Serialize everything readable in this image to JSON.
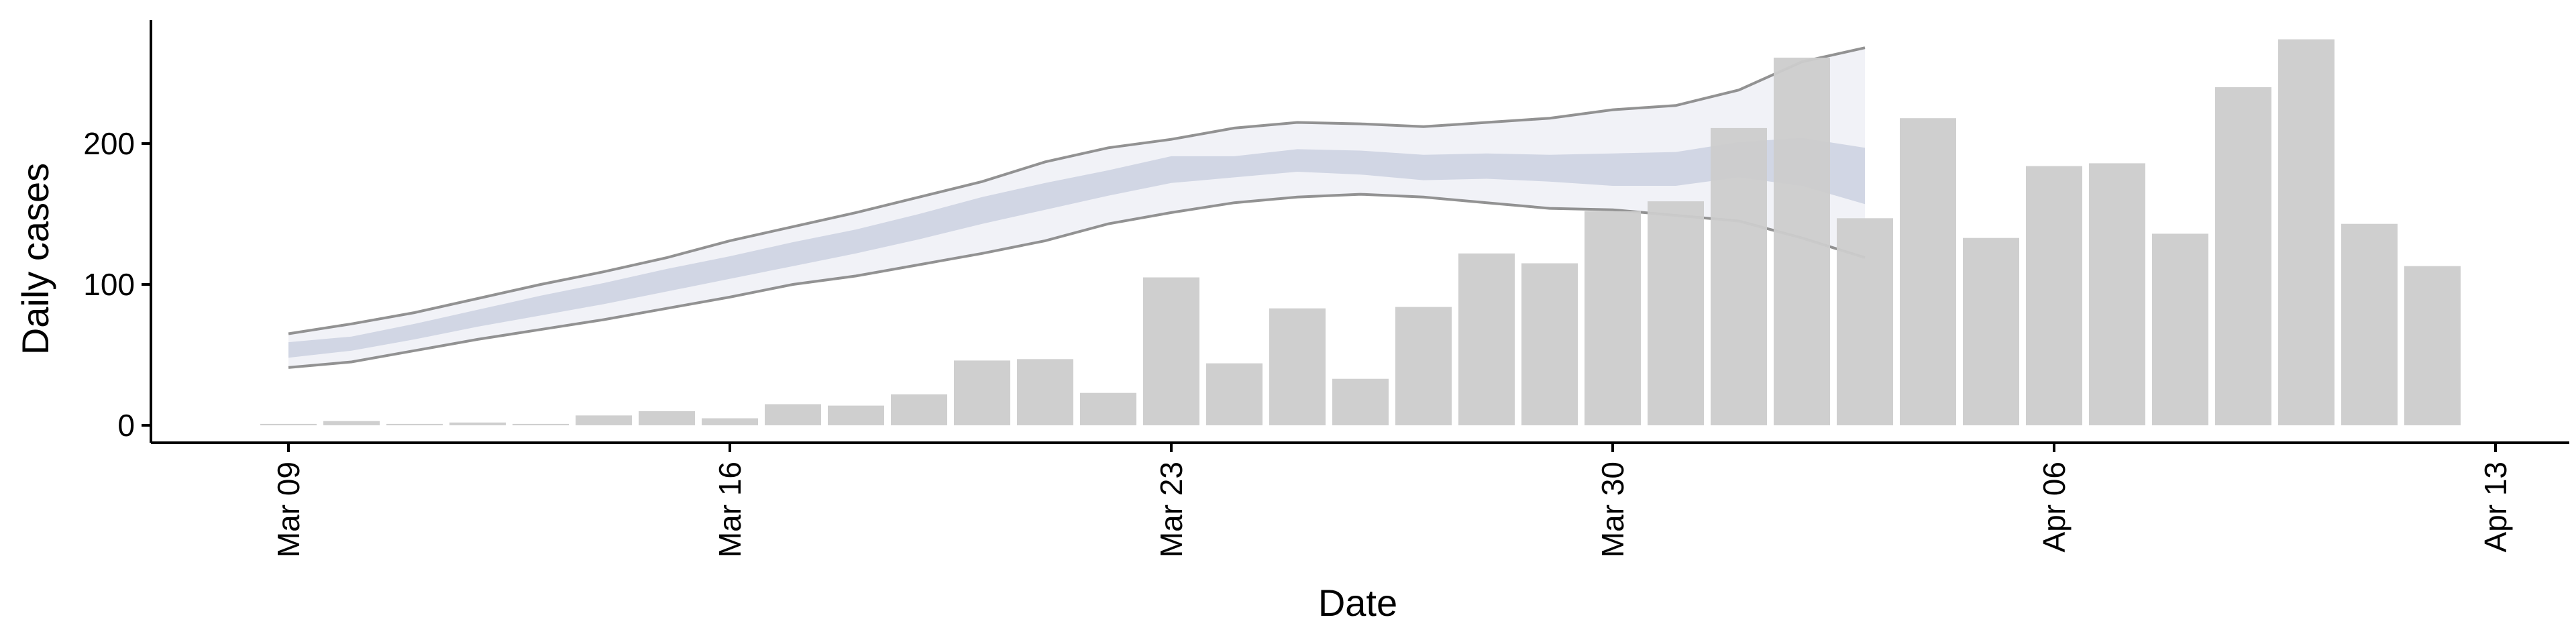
{
  "chart_data": {
    "type": "bar",
    "xlabel": "Date",
    "ylabel": "Daily cases",
    "x_tick_labels": [
      "Mar 09",
      "Mar 16",
      "Mar 23",
      "Mar 30",
      "Apr 06",
      "Apr 13"
    ],
    "y_ticks": [
      0,
      100,
      200
    ],
    "ylim": [
      -12,
      288
    ],
    "grid": false,
    "legend": "none",
    "bars": {
      "name": "",
      "color": "#cccccc",
      "x": [
        "2020-03-09",
        "2020-03-10",
        "2020-03-11",
        "2020-03-12",
        "2020-03-13",
        "2020-03-14",
        "2020-03-15",
        "2020-03-16",
        "2020-03-17",
        "2020-03-18",
        "2020-03-19",
        "2020-03-20",
        "2020-03-21",
        "2020-03-22",
        "2020-03-23",
        "2020-03-24",
        "2020-03-25",
        "2020-03-26",
        "2020-03-27",
        "2020-03-28",
        "2020-03-29",
        "2020-03-30",
        "2020-03-31",
        "2020-04-01",
        "2020-04-02",
        "2020-04-03",
        "2020-04-04",
        "2020-04-05",
        "2020-04-06",
        "2020-04-07",
        "2020-04-08",
        "2020-04-09",
        "2020-04-10",
        "2020-04-11",
        "2020-04-12"
      ],
      "values": [
        1,
        3,
        1,
        2,
        1,
        7,
        10,
        5,
        15,
        14,
        22,
        46,
        47,
        23,
        105,
        44,
        83,
        33,
        84,
        122,
        115,
        152,
        159,
        211,
        261,
        147,
        218,
        133,
        184,
        186,
        136,
        240,
        274,
        143,
        113
      ]
    },
    "nowcast": {
      "x": [
        "2020-03-09",
        "2020-03-10",
        "2020-03-11",
        "2020-03-12",
        "2020-03-13",
        "2020-03-14",
        "2020-03-15",
        "2020-03-16",
        "2020-03-17",
        "2020-03-18",
        "2020-03-19",
        "2020-03-20",
        "2020-03-21",
        "2020-03-22",
        "2020-03-23",
        "2020-03-24",
        "2020-03-25",
        "2020-03-26",
        "2020-03-27",
        "2020-03-28",
        "2020-03-29",
        "2020-03-30",
        "2020-03-31",
        "2020-04-01",
        "2020-04-02",
        "2020-04-03"
      ],
      "lower90": [
        41,
        45,
        53,
        61,
        68,
        75,
        83,
        91,
        100,
        106,
        114,
        122,
        131,
        143,
        151,
        158,
        162,
        164,
        162,
        158,
        154,
        153,
        149,
        145,
        133,
        119
      ],
      "upper90": [
        65,
        72,
        80,
        90,
        100,
        109,
        119,
        131,
        141,
        151,
        162,
        173,
        187,
        197,
        203,
        211,
        215,
        214,
        212,
        215,
        218,
        224,
        227,
        238,
        258,
        268
      ],
      "lower50": [
        48,
        53,
        61,
        70,
        78,
        86,
        95,
        104,
        113,
        122,
        132,
        143,
        153,
        163,
        172,
        176,
        180,
        178,
        174,
        175,
        173,
        170,
        170,
        176,
        170,
        157
      ],
      "upper50": [
        59,
        63,
        72,
        82,
        92,
        101,
        111,
        120,
        130,
        139,
        150,
        162,
        172,
        181,
        191,
        191,
        196,
        195,
        192,
        193,
        192,
        193,
        194,
        201,
        204,
        197
      ],
      "fill_color_90": "#eceef4",
      "fill_color_50": "#c6ccde",
      "outline_color": "#808080"
    }
  }
}
